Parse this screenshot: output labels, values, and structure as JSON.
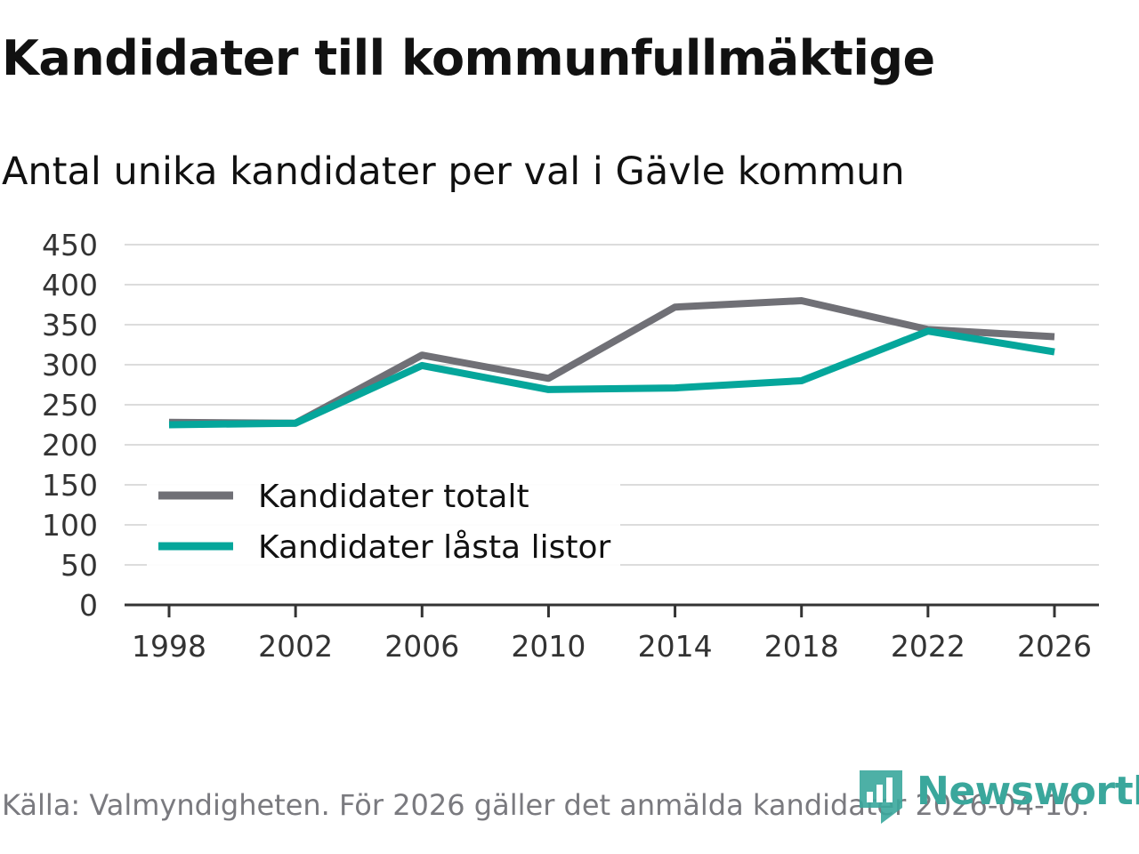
{
  "header": {
    "title": "Kandidater till kommunfullmäktige",
    "subtitle": "Antal unika kandidater per val i Gävle kommun"
  },
  "footer": {
    "source": "Källa: Valmyndigheten. För 2026 gäller det anmälda kandidater 2026-04-10.",
    "brand": "Newsworthy"
  },
  "colors": {
    "series_total": "#707076",
    "series_locked": "#05a69b",
    "brand": "#3aa79c"
  },
  "chart_data": {
    "type": "line",
    "title": "Kandidater till kommunfullmäktige",
    "subtitle": "Antal unika kandidater per val i Gävle kommun",
    "xlabel": "",
    "ylabel": "",
    "x": [
      1998,
      2002,
      2006,
      2010,
      2014,
      2018,
      2022,
      2026
    ],
    "x_tick_labels": [
      "1998",
      "2002",
      "2006",
      "2010",
      "2014",
      "2018",
      "2022",
      "2026"
    ],
    "ylim": [
      0,
      450
    ],
    "y_ticks": [
      0,
      50,
      100,
      150,
      200,
      250,
      300,
      350,
      400,
      450
    ],
    "grid": true,
    "legend_position": "bottom-left",
    "series": [
      {
        "name": "Kandidater totalt",
        "color": "#707076",
        "values": [
          228,
          227,
          312,
          283,
          372,
          380,
          344,
          335
        ]
      },
      {
        "name": "Kandidater låsta listor",
        "color": "#05a69b",
        "values": [
          225,
          227,
          299,
          269,
          271,
          280,
          342,
          316
        ]
      }
    ]
  }
}
